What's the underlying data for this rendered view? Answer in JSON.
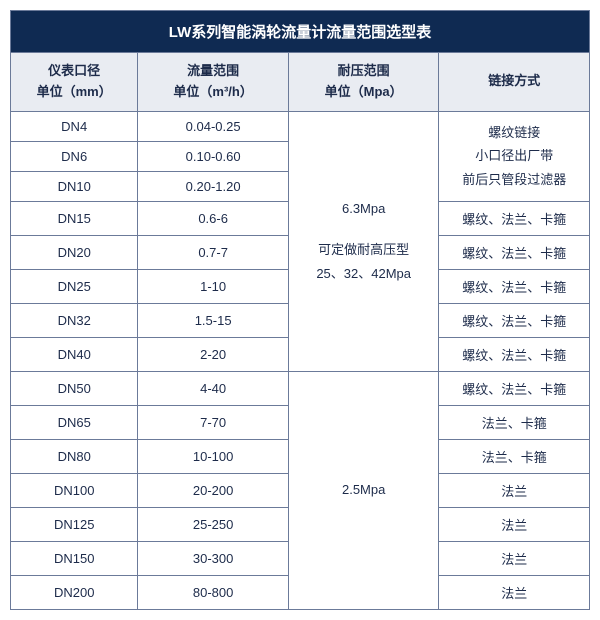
{
  "colors": {
    "title_bg": "#0f2a52",
    "title_fg": "#ffffff",
    "header_bg": "#e9ecf2",
    "header_fg": "#1d2b4a",
    "body_bg": "#ffffff",
    "body_fg": "#1d2b4a",
    "border": "#6b7a99"
  },
  "title": "LW系列智能涡轮流量计流量范围选型表",
  "headers": {
    "col1_l1": "仪表口径",
    "col1_l2": "单位（mm）",
    "col2_l1": "流量范围",
    "col2_l2": "单位（m³/h）",
    "col3_l1": "耐压范围",
    "col3_l2": "单位（Mpa）",
    "col4": "链接方式"
  },
  "pressure1_l1": "6.3Mpa",
  "pressure1_l2": "可定做耐高压型",
  "pressure1_l3": "25、32、42Mpa",
  "pressure2": "2.5Mpa",
  "conn_small_l1": "螺纹链接",
  "conn_small_l2": "小口径出厂带",
  "conn_small_l3": "前后只管段过滤器",
  "rows": [
    {
      "dn": "DN4",
      "range": "0.04-0.25"
    },
    {
      "dn": "DN6",
      "range": "0.10-0.60"
    },
    {
      "dn": "DN10",
      "range": "0.20-1.20"
    },
    {
      "dn": "DN15",
      "range": "0.6-6",
      "conn": "螺纹、法兰、卡箍"
    },
    {
      "dn": "DN20",
      "range": "0.7-7",
      "conn": "螺纹、法兰、卡箍"
    },
    {
      "dn": "DN25",
      "range": "1-10",
      "conn": "螺纹、法兰、卡箍"
    },
    {
      "dn": "DN32",
      "range": "1.5-15",
      "conn": "螺纹、法兰、卡箍"
    },
    {
      "dn": "DN40",
      "range": "2-20",
      "conn": "螺纹、法兰、卡箍"
    },
    {
      "dn": "DN50",
      "range": "4-40",
      "conn": "螺纹、法兰、卡箍"
    },
    {
      "dn": "DN65",
      "range": "7-70",
      "conn": "法兰、卡箍"
    },
    {
      "dn": "DN80",
      "range": "10-100",
      "conn": "法兰、卡箍"
    },
    {
      "dn": "DN100",
      "range": "20-200",
      "conn": "法兰"
    },
    {
      "dn": "DN125",
      "range": "25-250",
      "conn": "法兰"
    },
    {
      "dn": "DN150",
      "range": "30-300",
      "conn": "法兰"
    },
    {
      "dn": "DN200",
      "range": "80-800",
      "conn": "法兰"
    }
  ]
}
